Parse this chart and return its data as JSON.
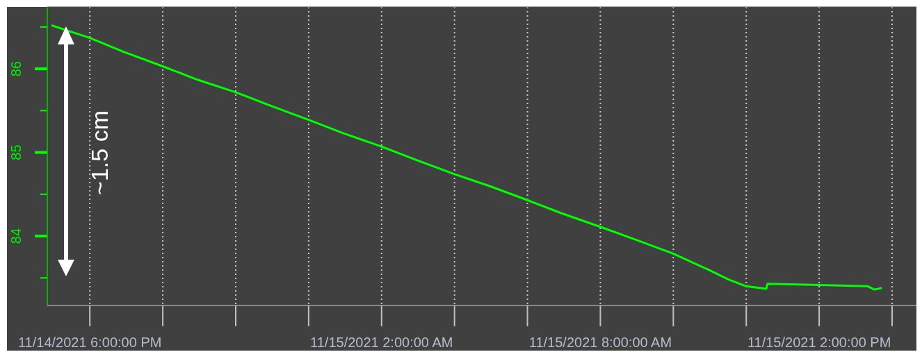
{
  "chart_data": {
    "type": "line",
    "x": [
      "2021-11-14T16:57",
      "2021-11-14T17:26",
      "2021-11-14T18:00",
      "2021-11-14T18:57",
      "2021-11-14T20:00",
      "2021-11-14T20:57",
      "2021-11-14T22:00",
      "2021-11-14T22:57",
      "2021-11-15T00:00",
      "2021-11-15T00:57",
      "2021-11-15T02:00",
      "2021-11-15T02:57",
      "2021-11-15T04:00",
      "2021-11-15T04:57",
      "2021-11-15T06:00",
      "2021-11-15T06:57",
      "2021-11-15T08:00",
      "2021-11-15T08:57",
      "2021-11-15T10:00",
      "2021-11-15T10:57",
      "2021-11-15T11:31",
      "2021-11-15T12:00",
      "2021-11-15T12:33",
      "2021-11-15T12:35",
      "2021-11-15T13:37",
      "2021-11-15T15:20",
      "2021-11-15T15:31",
      "2021-11-15T15:43"
    ],
    "series": [
      {
        "color": "#00ff00",
        "values": [
          86.52,
          86.45,
          86.37,
          86.2,
          86.03,
          85.87,
          85.72,
          85.56,
          85.39,
          85.23,
          85.07,
          84.91,
          84.74,
          84.6,
          84.43,
          84.27,
          84.11,
          83.96,
          83.79,
          83.6,
          83.48,
          83.4,
          83.37,
          83.43,
          83.42,
          83.4,
          83.36,
          83.38
        ]
      }
    ],
    "xlim": [
      "2021-11-14T16:50",
      "2021-11-15T16:40"
    ],
    "xticks": [
      {
        "value": "2021-11-14T18:00",
        "label": "11/14/2021 6:00:00 PM"
      },
      {
        "value": "2021-11-14T20:00",
        "label": null
      },
      {
        "value": "2021-11-14T22:00",
        "label": null
      },
      {
        "value": "2021-11-15T00:00",
        "label": null
      },
      {
        "value": "2021-11-15T02:00",
        "label": "11/15/2021 2:00:00 AM"
      },
      {
        "value": "2021-11-15T04:00",
        "label": null
      },
      {
        "value": "2021-11-15T06:00",
        "label": null
      },
      {
        "value": "2021-11-15T08:00",
        "label": "11/15/2021 8:00:00 AM"
      },
      {
        "value": "2021-11-15T10:00",
        "label": null
      },
      {
        "value": "2021-11-15T12:00",
        "label": null
      },
      {
        "value": "2021-11-15T14:00",
        "label": "11/15/2021 2:00:00 PM"
      },
      {
        "value": "2021-11-15T16:00",
        "label": null
      }
    ],
    "ylim": [
      83.17,
      86.74
    ],
    "yticks": [
      {
        "value": 83.5,
        "label": null
      },
      84,
      {
        "value": 84.5,
        "label": null
      },
      85,
      {
        "value": 85.5,
        "label": null
      },
      86,
      {
        "value": 86.5,
        "label": null
      }
    ],
    "grid": "x",
    "annotations": [
      "~1.5 cm"
    ]
  }
}
